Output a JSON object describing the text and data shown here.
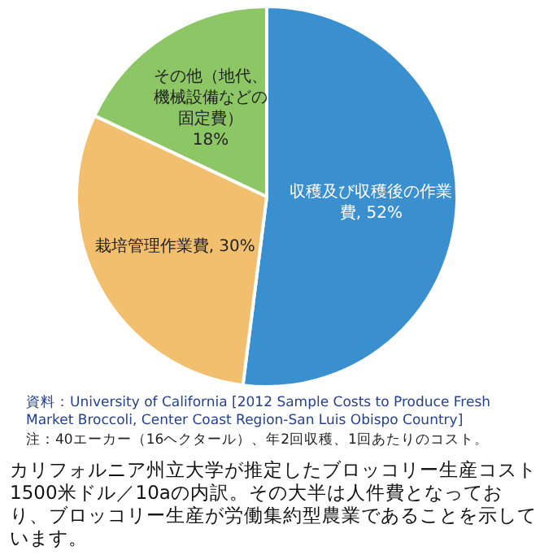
{
  "chart_data": {
    "type": "pie",
    "categories": [
      "収穫及び収穫後の作業費",
      "栽培管理作業費",
      "その他（地代、機械設備などの固定費）"
    ],
    "values": [
      52,
      30,
      18
    ],
    "value_labels": [
      "52%",
      "30%",
      "18%"
    ],
    "colors": [
      "#3a8fcf",
      "#f2bf6e",
      "#8cc665"
    ],
    "legend": false,
    "annotations": [
      "資料：University of California [2012 Sample Costs to Produce Fresh Market Broccoli, Center Coast Region-San Luis Obispo Country]",
      "注：40エーカー（16ヘクタール）、年2回収穫、1回あたりのコスト。",
      "カリフォルニア州立大学が推定したブロッコリー生産コスト1500米ドル／10aの内訳。その大半は人件費となっており、ブロッコリー生産が労働集約型農業であることを示しています。"
    ]
  }
}
